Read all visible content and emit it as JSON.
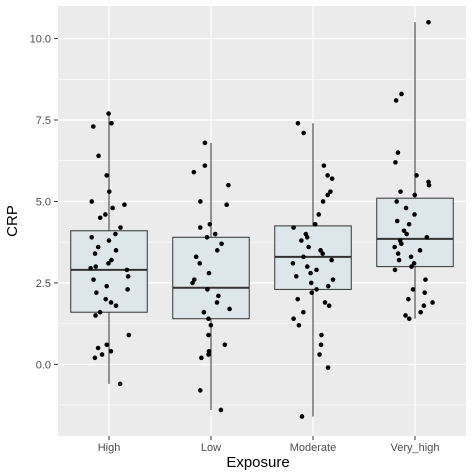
{
  "chart_data": {
    "type": "boxplot",
    "xlabel": "Exposure",
    "ylabel": "CRP",
    "categories": [
      "High",
      "Low",
      "Moderate",
      "Very_high"
    ],
    "ylim": [
      -2.2,
      11.0
    ],
    "y_ticks": [
      0.0,
      2.5,
      5.0,
      7.5,
      10.0
    ],
    "y_tick_labels": [
      "0.0",
      "2.5",
      "5.0",
      "7.5",
      "10.0"
    ],
    "grid": true,
    "legend": "none",
    "colors": {
      "panel_background": "#ebebeb",
      "grid": "#ffffff",
      "box_fill": "#dde7ea",
      "box_stroke": "#333333",
      "point": "#000000"
    },
    "boxes": [
      {
        "category": "High",
        "min": -0.6,
        "q1": 1.6,
        "median": 2.9,
        "q3": 4.1,
        "max": 7.7
      },
      {
        "category": "Low",
        "min": -1.4,
        "q1": 1.4,
        "median": 2.35,
        "q3": 3.9,
        "max": 6.8
      },
      {
        "category": "Moderate",
        "min": -1.6,
        "q1": 2.3,
        "median": 3.3,
        "q3": 4.25,
        "max": 7.4
      },
      {
        "category": "Very_high",
        "min": 1.4,
        "q1": 3.0,
        "median": 3.85,
        "q3": 5.1,
        "max": 10.5
      }
    ],
    "points": [
      {
        "category": "High",
        "values": [
          7.7,
          7.4,
          7.3,
          6.4,
          5.8,
          5.3,
          5.0,
          4.9,
          4.8,
          4.6,
          4.5,
          4.2,
          4.0,
          3.9,
          3.8,
          3.6,
          3.5,
          3.4,
          3.2,
          3.1,
          3.0,
          2.95,
          2.9,
          2.7,
          2.6,
          2.4,
          2.3,
          2.2,
          2.0,
          1.9,
          1.8,
          1.6,
          1.5,
          0.9,
          0.6,
          0.5,
          0.4,
          0.3,
          0.2,
          -0.6
        ]
      },
      {
        "category": "Low",
        "values": [
          6.8,
          6.1,
          5.9,
          5.5,
          5.0,
          4.9,
          4.3,
          4.2,
          4.0,
          3.9,
          3.7,
          3.5,
          3.3,
          3.1,
          2.8,
          2.6,
          2.5,
          2.3,
          2.1,
          1.9,
          1.7,
          1.6,
          1.4,
          1.2,
          0.9,
          0.6,
          0.4,
          0.3,
          0.2,
          -0.8,
          -1.4
        ]
      },
      {
        "category": "Moderate",
        "values": [
          7.4,
          7.1,
          6.1,
          5.8,
          5.7,
          5.3,
          5.2,
          5.0,
          4.6,
          4.3,
          4.2,
          4.0,
          3.9,
          3.8,
          3.6,
          3.5,
          3.4,
          3.3,
          3.2,
          3.1,
          3.0,
          2.9,
          2.8,
          2.7,
          2.6,
          2.5,
          2.4,
          2.3,
          2.2,
          2.0,
          1.9,
          1.8,
          1.6,
          1.4,
          1.2,
          0.9,
          0.6,
          0.3,
          -0.1,
          -1.6
        ]
      },
      {
        "category": "Very_high",
        "values": [
          10.5,
          8.3,
          8.1,
          6.5,
          6.2,
          5.8,
          5.6,
          5.5,
          5.3,
          5.2,
          5.0,
          4.8,
          4.6,
          4.4,
          4.3,
          4.1,
          4.0,
          3.9,
          3.8,
          3.7,
          3.6,
          3.5,
          3.4,
          3.3,
          3.2,
          3.1,
          3.0,
          2.9,
          2.6,
          2.3,
          2.2,
          2.0,
          1.9,
          1.8,
          1.6,
          1.5,
          1.4
        ]
      }
    ]
  }
}
